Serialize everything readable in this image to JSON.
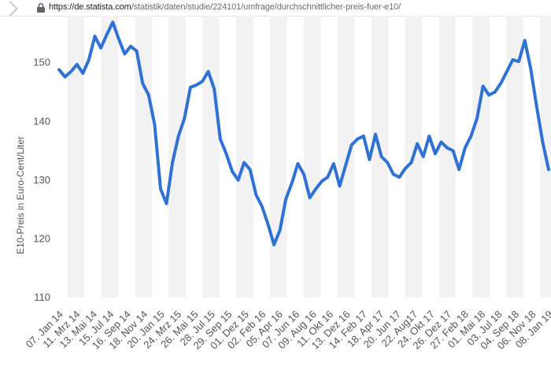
{
  "browser": {
    "url_host": "https://de.statista.com",
    "url_path": "/statistik/daten/studie/224101/umfrage/durchschnittlicher-preis-fuer-e10/"
  },
  "chart_data": {
    "type": "line",
    "ylabel": "E10-Preis in Euro-Cent/Liter",
    "xlabel": "",
    "ylim": [
      110,
      158
    ],
    "yticks": [
      110,
      120,
      130,
      140,
      150
    ],
    "grid": "alternating vertical bands",
    "color": "#2f72d3",
    "xticks": [
      "07. Jan 14",
      "11. Mrz 14",
      "13. Mai 14",
      "15. Jul 14",
      "16. Sep 14",
      "18. Nov 14",
      "20. Jan 15",
      "24. Mrz 15",
      "26. Mai 15",
      "28. Jul 15",
      "29. Sep 15",
      "01. Dez 15",
      "02. Feb 16",
      "05. Apr 16",
      "07. Jun 16",
      "09. Aug 16",
      "11. Okt 16",
      "13. Dez 16",
      "14. Feb 17",
      "18. Apr 17",
      "20. Jun 17",
      "22. Aug17",
      "24. Okt 17",
      "26. Dez 17",
      "27. Feb 18",
      "01. Mai 18",
      "03. Jul 18",
      "04. Sep 18",
      "06. Nov 18",
      "08. Jan 19"
    ],
    "values": [
      148.8,
      147.6,
      148.5,
      149.7,
      148.2,
      150.5,
      154.5,
      152.5,
      154.8,
      156.9,
      154.0,
      151.5,
      152.8,
      152.0,
      146.5,
      144.5,
      139.5,
      128.5,
      126.0,
      133.0,
      137.5,
      140.5,
      145.8,
      146.2,
      146.8,
      148.5,
      145.5,
      137.0,
      134.5,
      131.5,
      130.0,
      133.0,
      131.8,
      127.5,
      125.5,
      122.5,
      119.0,
      121.5,
      126.8,
      129.5,
      132.8,
      131.0,
      127.0,
      128.5,
      129.8,
      130.5,
      132.8,
      129.0,
      132.5,
      136.0,
      137.0,
      137.5,
      133.5,
      137.8,
      134.0,
      133.0,
      131.0,
      130.5,
      132.0,
      133.0,
      136.2,
      134.0,
      137.5,
      134.5,
      136.5,
      135.5,
      135.0,
      131.8,
      135.5,
      137.5,
      140.5,
      146.0,
      144.5,
      145.0,
      146.5,
      148.5,
      150.5,
      150.2,
      153.8,
      149.0,
      142.5,
      136.5,
      131.8
    ]
  }
}
